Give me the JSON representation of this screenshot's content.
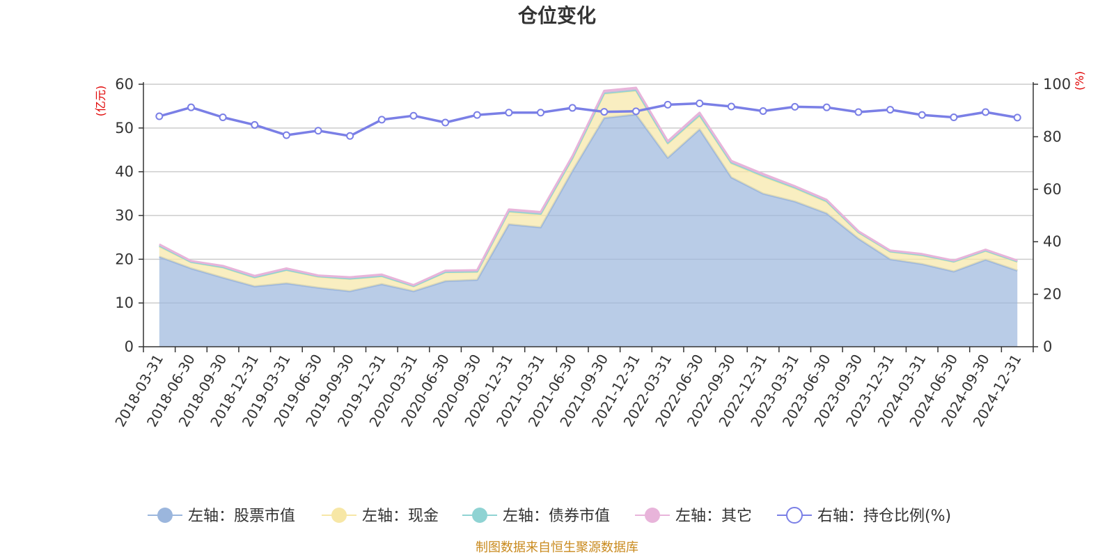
{
  "chart_data": {
    "type": "area",
    "title": "仓位变化",
    "left_axis_unit": "(亿元)",
    "right_axis_unit": "(%)",
    "left_ylim": [
      0,
      60
    ],
    "left_ticks": [
      "0",
      "10",
      "20",
      "30",
      "40",
      "50",
      "60"
    ],
    "right_ylim": [
      0,
      100
    ],
    "right_ticks": [
      "0",
      "20",
      "40",
      "60",
      "80",
      "100"
    ],
    "categories": [
      "2018-03-31",
      "2018-06-30",
      "2018-09-30",
      "2018-12-31",
      "2019-03-31",
      "2019-06-30",
      "2019-09-30",
      "2019-12-31",
      "2020-03-31",
      "2020-06-30",
      "2020-09-30",
      "2020-12-31",
      "2021-03-31",
      "2021-06-30",
      "2021-09-30",
      "2021-12-31",
      "2022-03-31",
      "2022-06-30",
      "2022-09-30",
      "2022-12-31",
      "2023-03-31",
      "2023-06-30",
      "2023-09-30",
      "2023-12-31",
      "2024-03-31",
      "2024-06-30",
      "2024-09-30",
      "2024-12-31"
    ],
    "grid": true,
    "legend_position": "bottom",
    "series": [
      {
        "name": "左轴：股票市值",
        "axis": "left",
        "stack": true,
        "color": "#9bb6dd",
        "values": [
          20.6,
          17.9,
          15.8,
          13.8,
          14.5,
          13.5,
          12.7,
          14.3,
          12.7,
          15.0,
          15.3,
          28.0,
          27.3,
          40.2,
          52.3,
          53.1,
          43.2,
          49.7,
          38.7,
          35.0,
          33.2,
          30.5,
          24.7,
          20.0,
          18.9,
          17.2,
          19.9,
          17.4
        ]
      },
      {
        "name": "左轴：现金",
        "axis": "left",
        "stack": true,
        "color": "#f7e7a6",
        "values": [
          2.3,
          1.4,
          2.3,
          2.0,
          3.0,
          2.5,
          2.8,
          1.8,
          1.1,
          2.0,
          1.8,
          2.8,
          2.9,
          2.8,
          5.5,
          5.4,
          3.2,
          3.1,
          3.2,
          3.9,
          3.0,
          2.6,
          1.4,
          1.7,
          2.0,
          2.2,
          2.0,
          2.0
        ]
      },
      {
        "name": "左轴：债券市值",
        "axis": "left",
        "stack": true,
        "color": "#8fd3d3",
        "values": [
          0.2,
          0.1,
          0.1,
          0.1,
          0.1,
          0.1,
          0.1,
          0.1,
          0.1,
          0.1,
          0.1,
          0.2,
          0.2,
          0.2,
          0.2,
          0.2,
          0.2,
          0.2,
          0.2,
          0.2,
          0.2,
          0.2,
          0.1,
          0.1,
          0.1,
          0.1,
          0.1,
          0.1
        ]
      },
      {
        "name": "左轴：其它",
        "axis": "left",
        "stack": true,
        "color": "#e8b4da",
        "values": [
          0.3,
          0.2,
          0.3,
          0.3,
          0.3,
          0.2,
          0.3,
          0.3,
          0.2,
          0.3,
          0.3,
          0.4,
          0.4,
          0.4,
          0.5,
          0.5,
          0.4,
          0.5,
          0.4,
          0.4,
          0.3,
          0.3,
          0.2,
          0.2,
          0.2,
          0.2,
          0.2,
          0.2
        ]
      },
      {
        "name": "右轴：持仓比例(%)",
        "axis": "right",
        "stack": false,
        "color": "#7a7fe6",
        "values": [
          87.8,
          91.2,
          87.4,
          84.5,
          80.6,
          82.3,
          80.3,
          86.5,
          88.0,
          85.4,
          88.3,
          89.2,
          89.2,
          91.0,
          89.5,
          89.7,
          92.2,
          92.7,
          91.5,
          89.8,
          91.4,
          91.2,
          89.4,
          90.3,
          88.3,
          87.4,
          89.4,
          87.3
        ]
      }
    ]
  },
  "footer": {
    "source": "制图数据来自恒生聚源数据库"
  }
}
